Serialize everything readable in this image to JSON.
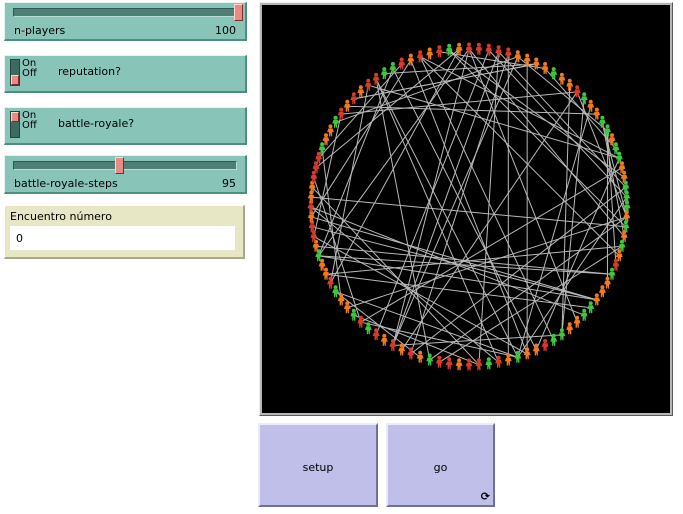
{
  "sliders": [
    {
      "id": "n-players",
      "label": "n-players",
      "value": "100",
      "level": 1.0
    },
    {
      "id": "battle-royale-steps",
      "label": "battle-royale-steps",
      "value": "95",
      "level": 0.5
    }
  ],
  "switches": [
    {
      "id": "reputation",
      "label": "reputation?",
      "on_text": "On",
      "off_text": "Off",
      "state": "off"
    },
    {
      "id": "battle-royale",
      "label": "battle-royale?",
      "on_text": "On",
      "off_text": "Off",
      "state": "off"
    }
  ],
  "monitor": {
    "title": "Encuentro número",
    "value": "0"
  },
  "buttons": {
    "setup": "setup",
    "go": "go",
    "go_forever_icon": "⟳"
  },
  "view": {
    "n_agents": 100,
    "colors": {
      "red": "#d73b2b",
      "orange": "#f07a22",
      "green": "#3fc63f",
      "link": "#b9b9b9",
      "background": "#000000"
    }
  }
}
